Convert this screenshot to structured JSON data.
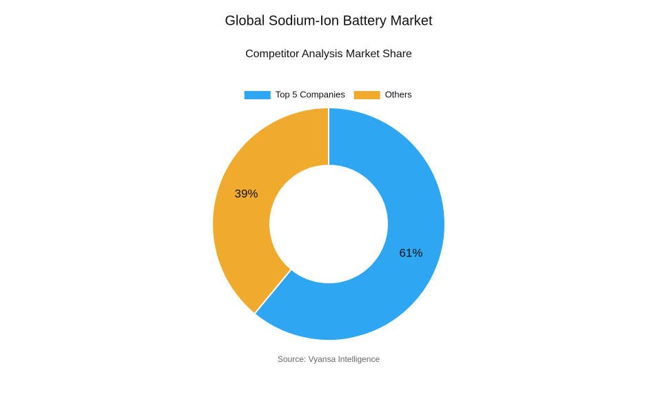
{
  "chart_data": {
    "type": "pie",
    "title": "Global Sodium-Ion Battery Market",
    "subtitle": "Competitor Analysis Market Share",
    "categories": [
      "Top 5 Companies",
      "Others"
    ],
    "values": [
      61,
      39
    ],
    "value_labels": [
      "61%",
      "39%"
    ],
    "colors": [
      "#2ea6f2",
      "#f0ab2e"
    ],
    "legend": "top",
    "source": "Source: Vyansa Intelligence"
  }
}
